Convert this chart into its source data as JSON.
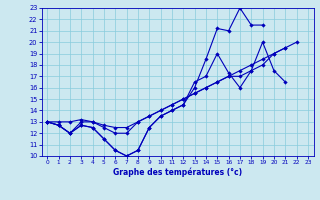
{
  "xlabel": "Graphe des températures (°c)",
  "xlim": [
    -0.5,
    23.5
  ],
  "ylim": [
    10,
    23
  ],
  "xticks": [
    0,
    1,
    2,
    3,
    4,
    5,
    6,
    7,
    8,
    9,
    10,
    11,
    12,
    13,
    14,
    15,
    16,
    17,
    18,
    19,
    20,
    21,
    22,
    23
  ],
  "yticks": [
    10,
    11,
    12,
    13,
    14,
    15,
    16,
    17,
    18,
    19,
    20,
    21,
    22,
    23
  ],
  "bg_color": "#cce8f0",
  "grid_color": "#88ccdd",
  "line_color": "#0000bb",
  "line1_x": [
    0,
    1,
    2,
    3,
    4,
    5,
    6,
    7,
    8,
    9,
    10,
    11,
    12,
    13,
    14,
    15,
    16,
    17,
    18,
    19,
    20,
    21,
    22,
    23
  ],
  "line1_y": [
    13,
    12.7,
    12,
    12.7,
    12.5,
    11.5,
    10.5,
    10,
    10.5,
    12.5,
    13.5,
    14,
    14.5,
    16.5,
    17,
    19,
    17.3,
    16,
    17.5,
    20,
    17.5,
    16.5,
    null,
    null
  ],
  "line2_x": [
    0,
    1,
    2,
    3,
    4,
    5,
    6,
    7,
    8,
    9,
    10,
    11,
    12,
    13,
    14,
    15,
    16,
    17,
    18,
    19
  ],
  "line2_y": [
    13,
    12.7,
    12,
    12.7,
    12.5,
    11.5,
    10.5,
    10,
    10.5,
    12.5,
    13.5,
    14,
    14.5,
    16,
    18.5,
    21.2,
    21,
    23,
    21.5,
    21.5
  ],
  "line3_x": [
    0,
    1,
    2,
    3,
    4,
    5,
    6,
    7,
    8,
    9,
    10,
    11,
    12,
    13,
    14,
    15,
    16,
    17,
    18,
    19,
    20,
    21,
    22
  ],
  "line3_y": [
    13,
    12.7,
    12,
    13,
    13,
    12.5,
    12,
    12,
    13,
    13.5,
    14,
    14.5,
    15,
    15.5,
    16,
    16.5,
    17,
    17.5,
    18,
    18.5,
    19,
    19.5,
    20
  ],
  "line4_x": [
    0,
    1,
    2,
    3,
    4,
    5,
    6,
    7,
    8,
    9,
    10,
    11,
    12,
    13,
    14,
    15,
    16,
    17,
    18,
    19,
    20,
    21
  ],
  "line4_y": [
    13,
    13,
    13,
    13.2,
    13,
    12.7,
    12.5,
    12.5,
    13,
    13.5,
    14,
    14.5,
    15,
    15.5,
    16,
    16.5,
    17,
    17,
    17.5,
    18,
    19,
    19.5
  ]
}
